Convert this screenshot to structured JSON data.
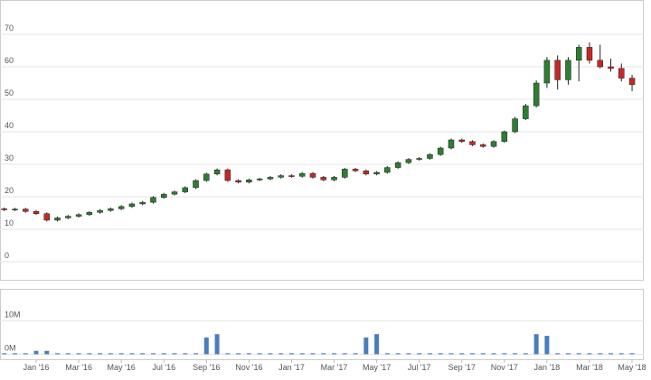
{
  "chart_data": [
    {
      "type": "candlestick",
      "x": [
        -1.5,
        -1,
        -0.5,
        0,
        0.5,
        1,
        1.5,
        2,
        2.5,
        3,
        3.5,
        4,
        4.5,
        5,
        5.5,
        6,
        6.5,
        7,
        7.5,
        8,
        8.5,
        9,
        9.5,
        10,
        10.5,
        11,
        11.5,
        12,
        12.5,
        13,
        13.5,
        14,
        14.5,
        15,
        15.5,
        16,
        16.5,
        17,
        17.5,
        18,
        18.5,
        19,
        19.5,
        20,
        20.5,
        21,
        21.5,
        22,
        22.5,
        23,
        23.5,
        24,
        24.5,
        25,
        25.5,
        26,
        26.5,
        27,
        27.5,
        28
      ],
      "open": [
        16.3,
        16.0,
        16.2,
        15.5,
        14.8,
        12.8,
        13.5,
        14.0,
        14.5,
        15.2,
        15.8,
        16.3,
        17.0,
        17.8,
        18.3,
        19.8,
        20.8,
        21.5,
        22.8,
        25.0,
        27.0,
        28.3,
        25.0,
        24.5,
        25.2,
        25.5,
        26.0,
        26.5,
        26.3,
        27.2,
        26.0,
        25.2,
        26.0,
        28.5,
        28.0,
        27.0,
        27.5,
        29.0,
        30.5,
        31.5,
        31.8,
        33.0,
        35.0,
        37.5,
        37.0,
        36.0,
        35.5,
        37.0,
        40.0,
        44.0,
        48.0,
        55.0,
        62.0,
        56.0,
        62.0,
        66.0,
        62.0,
        60.0,
        59.5,
        56.5
      ],
      "high": [
        16.7,
        16.6,
        16.6,
        15.9,
        15.2,
        13.9,
        14.4,
        14.9,
        15.6,
        16.2,
        16.7,
        17.4,
        18.2,
        18.7,
        20.2,
        21.2,
        21.9,
        23.2,
        25.4,
        27.4,
        28.7,
        28.7,
        25.4,
        25.6,
        25.9,
        26.4,
        26.9,
        26.9,
        27.6,
        27.6,
        26.4,
        26.4,
        28.9,
        28.9,
        28.4,
        27.9,
        29.4,
        30.9,
        31.9,
        32.2,
        33.4,
        35.4,
        37.9,
        37.9,
        37.4,
        36.4,
        37.4,
        40.4,
        44.6,
        48.6,
        55.8,
        63.0,
        63.5,
        63.0,
        66.8,
        67.5,
        66.8,
        62.5,
        61.0,
        57.5
      ],
      "low": [
        15.6,
        15.6,
        15.1,
        14.4,
        12.4,
        12.4,
        13.1,
        13.6,
        14.1,
        14.8,
        15.4,
        15.9,
        16.6,
        17.4,
        17.9,
        19.4,
        20.4,
        21.1,
        22.4,
        24.6,
        26.6,
        24.6,
        24.1,
        24.1,
        24.8,
        25.1,
        25.6,
        25.9,
        25.9,
        25.6,
        24.8,
        24.8,
        25.6,
        27.6,
        26.6,
        26.6,
        27.1,
        28.6,
        30.1,
        31.1,
        31.4,
        32.6,
        34.6,
        36.6,
        35.6,
        35.1,
        35.1,
        36.6,
        39.6,
        43.6,
        47.5,
        53.5,
        53.0,
        54.5,
        55.5,
        61.0,
        59.5,
        58.5,
        55.5,
        52.5
      ],
      "close": [
        16.0,
        16.2,
        15.5,
        14.8,
        12.8,
        13.5,
        14.0,
        14.5,
        15.2,
        15.8,
        16.3,
        17.0,
        17.8,
        18.3,
        19.8,
        20.8,
        21.5,
        22.8,
        25.0,
        27.0,
        28.3,
        25.0,
        24.5,
        25.2,
        25.5,
        26.0,
        26.5,
        26.3,
        27.2,
        26.0,
        25.2,
        26.0,
        28.5,
        28.0,
        27.0,
        27.5,
        29.0,
        30.5,
        31.5,
        31.8,
        33.0,
        35.0,
        37.5,
        37.0,
        36.0,
        35.5,
        37.0,
        40.0,
        44.0,
        48.0,
        55.0,
        62.0,
        56.0,
        62.0,
        66.0,
        62.0,
        60.0,
        59.5,
        56.5,
        54.5
      ],
      "up_color": "#2e7d32",
      "down_color": "#c62828",
      "xlim": [
        -1.7,
        28.55
      ],
      "ylim": [
        -5,
        80
      ],
      "yticks": [
        0,
        10,
        20,
        30,
        40,
        50,
        60,
        70
      ],
      "grid": true
    },
    {
      "type": "volume",
      "x": [
        -1.5,
        -1,
        -0.5,
        0,
        0.5,
        1,
        1.5,
        2,
        2.5,
        3,
        3.5,
        4,
        4.5,
        5,
        5.5,
        6,
        6.5,
        7,
        7.5,
        8,
        8.5,
        9,
        9.5,
        10,
        10.5,
        11,
        11.5,
        12,
        12.5,
        13,
        13.5,
        14,
        14.5,
        15,
        15.5,
        16,
        16.5,
        17,
        17.5,
        18,
        18.5,
        19,
        19.5,
        20,
        20.5,
        21,
        21.5,
        22,
        22.5,
        23,
        23.5,
        24,
        24.5,
        25,
        25.5,
        26,
        26.5,
        27,
        27.5,
        28
      ],
      "values": [
        0.3,
        0.3,
        0.3,
        1.0,
        1.0,
        0.3,
        0.3,
        0.3,
        0.3,
        0.3,
        0.3,
        0.3,
        0.3,
        0.3,
        0.3,
        0.3,
        0.3,
        0.3,
        0.3,
        5,
        6,
        0.3,
        0.3,
        0.3,
        0.3,
        0.3,
        0.3,
        0.3,
        0.3,
        0.3,
        0.3,
        0.3,
        0.3,
        0.3,
        5,
        6,
        0.3,
        0.3,
        0.3,
        0.3,
        0.3,
        0.3,
        0.3,
        0.3,
        0.3,
        0.3,
        0.3,
        0.3,
        0.3,
        0.3,
        6,
        5.5,
        0.3,
        0.3,
        0.3,
        0.3,
        0.3,
        0.3,
        0.3,
        0.3
      ],
      "color": "#4a7ebb",
      "xlim": [
        -1.7,
        28.55
      ],
      "ylim": [
        -1.5,
        19
      ],
      "yticks": [
        {
          "value": 0,
          "label": "0M"
        },
        {
          "value": 10,
          "label": "10M"
        }
      ],
      "xticks": [
        {
          "value": 0,
          "label": "Jan '16"
        },
        {
          "value": 2,
          "label": "Mar '16"
        },
        {
          "value": 4,
          "label": "May '16"
        },
        {
          "value": 6,
          "label": "Jul '16"
        },
        {
          "value": 8,
          "label": "Sep '16"
        },
        {
          "value": 10,
          "label": "Nov '16"
        },
        {
          "value": 12,
          "label": "Jan '17"
        },
        {
          "value": 14,
          "label": "Mar '17"
        },
        {
          "value": 16,
          "label": "May '17"
        },
        {
          "value": 18,
          "label": "Jul '17"
        },
        {
          "value": 20,
          "label": "Sep '17"
        },
        {
          "value": 22,
          "label": "Nov '17"
        },
        {
          "value": 24,
          "label": "Jan '18"
        },
        {
          "value": 26,
          "label": "Mar '18"
        },
        {
          "value": 28,
          "label": "May '18"
        }
      ],
      "grid": true
    }
  ]
}
